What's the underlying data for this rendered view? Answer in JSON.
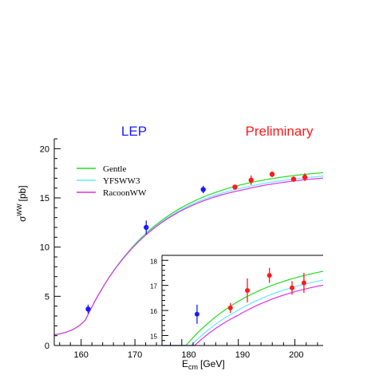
{
  "header": {
    "left": "LEP",
    "right": "Preliminary",
    "left_color": "#1a1aff",
    "right_color": "#ff1a1a"
  },
  "chart_data": [
    {
      "type": "line",
      "panel": "main",
      "xlabel_main": "E",
      "xlabel_sub": "cm",
      "xlabel_unit": "[GeV]",
      "ylabel_main": "σ",
      "ylabel_sup": "WW",
      "ylabel_unit": "[pb]",
      "xlim": [
        155,
        205
      ],
      "ylim": [
        0,
        21
      ],
      "xticks": [
        "160",
        "170",
        "180",
        "190",
        "200"
      ],
      "yticks": [
        "0",
        "5",
        "10",
        "15",
        "20"
      ],
      "legend_position": "top-left",
      "series": [
        {
          "name": "Gentle",
          "color": "#22dd22"
        },
        {
          "name": "YFSWW3",
          "color": "#66e8ff"
        },
        {
          "name": "RacoonWW",
          "color": "#e030e0"
        }
      ],
      "points": [
        {
          "x": 161.3,
          "y": 3.7,
          "err": 0.45,
          "color": "#1a1aff"
        },
        {
          "x": 172.1,
          "y": 12.0,
          "err": 0.7,
          "color": "#1a1aff"
        },
        {
          "x": 182.7,
          "y": 15.85,
          "err": 0.38,
          "color": "#1a1aff"
        },
        {
          "x": 188.6,
          "y": 16.1,
          "err": 0.2,
          "color": "#ff1a1a"
        },
        {
          "x": 191.6,
          "y": 16.8,
          "err": 0.48,
          "color": "#ff1a1a"
        },
        {
          "x": 195.5,
          "y": 17.4,
          "err": 0.3,
          "color": "#ff1a1a"
        },
        {
          "x": 199.5,
          "y": 16.9,
          "err": 0.27,
          "color": "#ff1a1a"
        },
        {
          "x": 201.6,
          "y": 17.1,
          "err": 0.4,
          "color": "#ff1a1a"
        }
      ]
    },
    {
      "type": "line",
      "panel": "inset",
      "xlim": [
        176.5,
        205
      ],
      "ylim": [
        14.6,
        18.2
      ],
      "yticks": [
        "15",
        "16",
        "17",
        "18"
      ],
      "series": [
        {
          "name": "Gentle",
          "color": "#22dd22"
        },
        {
          "name": "YFSWW3",
          "color": "#66e8ff"
        },
        {
          "name": "RacoonWW",
          "color": "#e030e0"
        }
      ],
      "points": [
        {
          "x": 182.7,
          "y": 15.85,
          "err": 0.38,
          "color": "#1a1aff"
        },
        {
          "x": 188.6,
          "y": 16.1,
          "err": 0.2,
          "color": "#ff1a1a"
        },
        {
          "x": 191.6,
          "y": 16.8,
          "err": 0.48,
          "color": "#ff1a1a"
        },
        {
          "x": 195.5,
          "y": 17.4,
          "err": 0.3,
          "color": "#ff1a1a"
        },
        {
          "x": 199.5,
          "y": 16.9,
          "err": 0.27,
          "color": "#ff1a1a"
        },
        {
          "x": 201.6,
          "y": 17.1,
          "err": 0.4,
          "color": "#ff1a1a"
        }
      ]
    }
  ]
}
